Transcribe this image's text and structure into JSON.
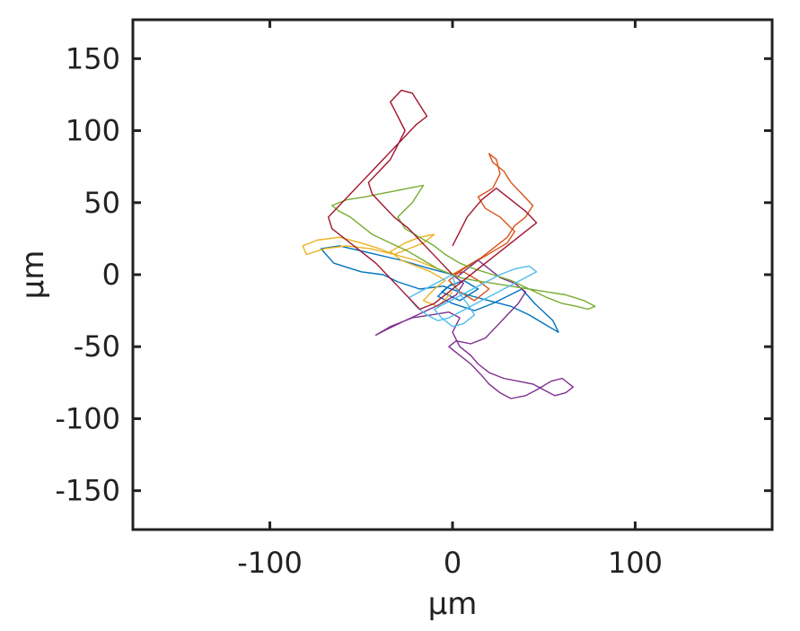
{
  "chart_data": {
    "type": "line",
    "title": "",
    "xlabel": "μm",
    "ylabel": "μm",
    "xlim": [
      -175,
      175
    ],
    "ylim": [
      -177,
      177
    ],
    "xticks": [
      -100,
      0,
      100
    ],
    "yticks": [
      150,
      100,
      50,
      0,
      -50,
      -100,
      -150
    ],
    "xtick_labels": [
      "-100",
      "0",
      "100"
    ],
    "ytick_labels": [
      "150",
      "100",
      "50",
      "0",
      "-50",
      "-100",
      "-150"
    ],
    "grid": false,
    "legend": "none",
    "series": [
      {
        "color": "#0072BD",
        "x": [
          0,
          -12,
          -28,
          -45,
          -62,
          -72,
          -65,
          -50,
          -38,
          -30,
          -18,
          -5,
          8,
          20,
          32,
          42,
          50,
          58,
          55,
          45,
          38,
          30,
          22,
          12,
          0,
          -8,
          -2,
          6,
          14,
          4,
          -6,
          0
        ],
        "y": [
          0,
          4,
          10,
          15,
          20,
          18,
          8,
          2,
          0,
          -5,
          -10,
          -8,
          -14,
          -18,
          -22,
          -28,
          -34,
          -40,
          -32,
          -20,
          -10,
          -15,
          -20,
          -25,
          -20,
          -15,
          -8,
          -4,
          -10,
          -18,
          -12,
          -6
        ]
      },
      {
        "color": "#D95319",
        "x": [
          0,
          8,
          16,
          24,
          30,
          34,
          40,
          44,
          38,
          32,
          28,
          22,
          20,
          24,
          26,
          22,
          14,
          18,
          26,
          34,
          30,
          22,
          14,
          6,
          -2,
          4,
          12,
          20,
          14,
          6,
          0
        ],
        "y": [
          0,
          6,
          12,
          20,
          26,
          34,
          40,
          48,
          56,
          64,
          72,
          78,
          84,
          80,
          70,
          60,
          54,
          46,
          40,
          30,
          22,
          16,
          10,
          4,
          -4,
          -12,
          -18,
          -10,
          -4,
          2,
          0
        ]
      },
      {
        "color": "#EDB120",
        "x": [
          0,
          -10,
          -20,
          -32,
          -45,
          -58,
          -70,
          -80,
          -82,
          -74,
          -62,
          -50,
          -40,
          -32,
          -24,
          -16,
          -10,
          -18,
          -26,
          -34,
          -28,
          -20,
          -12,
          -4,
          -10,
          -16,
          -8,
          0
        ],
        "y": [
          0,
          5,
          10,
          14,
          18,
          20,
          18,
          14,
          20,
          24,
          26,
          22,
          18,
          14,
          18,
          22,
          28,
          26,
          22,
          16,
          10,
          6,
          2,
          -4,
          -10,
          -18,
          -22,
          -12
        ]
      },
      {
        "color": "#7E2F8E",
        "x": [
          0,
          6,
          2,
          -6,
          -16,
          -26,
          -36,
          -42,
          -34,
          -22,
          -12,
          -2,
          4,
          0,
          4,
          10,
          14,
          20,
          28,
          36,
          44,
          50,
          56,
          62,
          66,
          60,
          54,
          46,
          40,
          32,
          26,
          20,
          16,
          10,
          4,
          -2,
          2,
          10,
          18,
          24,
          30,
          36,
          40,
          34,
          26,
          20,
          14,
          8,
          2,
          0
        ],
        "y": [
          0,
          -6,
          -14,
          -20,
          -26,
          -32,
          -38,
          -42,
          -36,
          -30,
          -28,
          -26,
          -30,
          -40,
          -50,
          -56,
          -62,
          -68,
          -72,
          -74,
          -76,
          -80,
          -84,
          -82,
          -78,
          -72,
          -74,
          -80,
          -84,
          -86,
          -82,
          -76,
          -70,
          -62,
          -56,
          -50,
          -46,
          -48,
          -44,
          -36,
          -28,
          -20,
          -12,
          -6,
          -2,
          4,
          10,
          4,
          -2,
          0
        ]
      },
      {
        "color": "#77AC30",
        "x": [
          0,
          -8,
          -16,
          -24,
          -34,
          -44,
          -50,
          -56,
          -62,
          -66,
          -58,
          -48,
          -40,
          -32,
          -24,
          -16,
          -22,
          -30,
          -26,
          -18,
          -10,
          -4,
          4,
          12,
          22,
          32,
          42,
          52,
          60,
          68,
          74,
          78,
          72,
          62,
          52,
          42,
          32,
          22,
          12,
          4,
          0
        ],
        "y": [
          0,
          4,
          10,
          16,
          22,
          28,
          34,
          40,
          44,
          48,
          52,
          54,
          56,
          58,
          60,
          62,
          50,
          40,
          32,
          26,
          20,
          14,
          8,
          4,
          0,
          -4,
          -10,
          -16,
          -20,
          -22,
          -24,
          -22,
          -18,
          -14,
          -12,
          -10,
          -8,
          -6,
          -4,
          -2,
          0
        ]
      },
      {
        "color": "#4DBEEE",
        "x": [
          0,
          -6,
          -12,
          -18,
          -24,
          -20,
          -14,
          -8,
          -2,
          4,
          10,
          16,
          22,
          28,
          34,
          40,
          46,
          42,
          34,
          26,
          20,
          14,
          8,
          2,
          -4,
          -10,
          -6,
          0,
          6,
          12,
          8,
          2,
          0
        ],
        "y": [
          0,
          -4,
          -8,
          -12,
          -16,
          -22,
          -28,
          -32,
          -30,
          -26,
          -22,
          -18,
          -14,
          -10,
          -6,
          -2,
          2,
          6,
          4,
          0,
          -4,
          -8,
          -12,
          -16,
          -20,
          -24,
          -30,
          -36,
          -34,
          -28,
          -20,
          -10,
          0
        ]
      },
      {
        "color": "#A2142F",
        "x": [
          0,
          -6,
          -12,
          -18,
          -24,
          -32,
          -38,
          -44,
          -46,
          -40,
          -34,
          -30,
          -26,
          -30,
          -34,
          -28,
          -22,
          -18,
          -14,
          -20,
          -26,
          -32,
          -38,
          -44,
          -50,
          -56,
          -62,
          -68,
          -66,
          -58,
          -50,
          -42,
          -36,
          -30,
          -24,
          -18,
          -10,
          -2,
          6,
          14,
          22,
          30,
          38,
          46,
          40,
          32,
          24,
          16,
          8,
          0
        ],
        "y": [
          0,
          8,
          16,
          24,
          32,
          40,
          48,
          56,
          64,
          72,
          80,
          90,
          100,
          110,
          120,
          128,
          126,
          118,
          110,
          104,
          96,
          88,
          80,
          72,
          64,
          56,
          48,
          40,
          32,
          24,
          16,
          8,
          0,
          -8,
          -16,
          -24,
          -20,
          -12,
          -4,
          4,
          12,
          20,
          28,
          36,
          44,
          52,
          60,
          52,
          40,
          20
        ]
      }
    ]
  }
}
